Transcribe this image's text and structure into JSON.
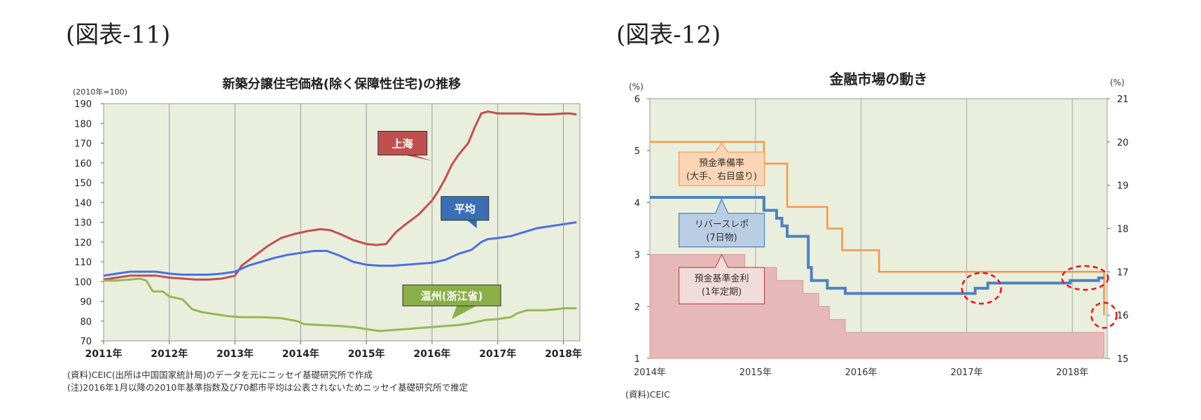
{
  "figures": {
    "left_label": "(図表-11)",
    "right_label": "(図表-12)"
  },
  "chart_data": [
    {
      "type": "line",
      "title": "新築分譲住宅価格(除く保障性住宅)の推移",
      "unit_label": "(2010年=100)",
      "xlabel": "",
      "ylabel": "",
      "x_ticks": [
        "2011年",
        "2012年",
        "2013年",
        "2014年",
        "2015年",
        "2016年",
        "2017年",
        "2018年"
      ],
      "xlim": [
        2011.0,
        2018.25
      ],
      "ylim": [
        70,
        190
      ],
      "y_ticks": [
        70,
        80,
        90,
        100,
        110,
        120,
        130,
        140,
        150,
        160,
        170,
        180,
        190
      ],
      "background": "#eaeedd",
      "grid": "vertical",
      "series": [
        {
          "name": "上海",
          "color": "#c0504d",
          "label_box_color": "#c0504d",
          "points": [
            [
              2011.0,
              101
            ],
            [
              2011.2,
              102
            ],
            [
              2011.4,
              103
            ],
            [
              2011.6,
              103
            ],
            [
              2011.8,
              103
            ],
            [
              2012.0,
              102
            ],
            [
              2012.2,
              101.5
            ],
            [
              2012.4,
              101
            ],
            [
              2012.6,
              101
            ],
            [
              2012.8,
              101.5
            ],
            [
              2013.0,
              103
            ],
            [
              2013.1,
              108
            ],
            [
              2013.3,
              113
            ],
            [
              2013.5,
              118
            ],
            [
              2013.7,
              122
            ],
            [
              2013.9,
              124
            ],
            [
              2014.1,
              125.5
            ],
            [
              2014.3,
              126.5
            ],
            [
              2014.45,
              126
            ],
            [
              2014.6,
              124
            ],
            [
              2014.8,
              121
            ],
            [
              2015.0,
              119
            ],
            [
              2015.15,
              118.5
            ],
            [
              2015.3,
              119
            ],
            [
              2015.45,
              125
            ],
            [
              2015.6,
              129
            ],
            [
              2015.8,
              134
            ],
            [
              2016.0,
              141
            ],
            [
              2016.1,
              146
            ],
            [
              2016.2,
              152
            ],
            [
              2016.3,
              159
            ],
            [
              2016.4,
              164
            ],
            [
              2016.55,
              170
            ],
            [
              2016.65,
              178
            ],
            [
              2016.75,
              185
            ],
            [
              2016.85,
              186
            ],
            [
              2017.0,
              185
            ],
            [
              2017.2,
              185
            ],
            [
              2017.4,
              185
            ],
            [
              2017.6,
              184.5
            ],
            [
              2017.8,
              184.5
            ],
            [
              2018.0,
              185
            ],
            [
              2018.1,
              185
            ],
            [
              2018.2,
              184.5
            ]
          ]
        },
        {
          "name": "平均",
          "color": "#4a6fe3",
          "label_box_color": "#3a6fb6",
          "points": [
            [
              2011.0,
              103
            ],
            [
              2011.2,
              104
            ],
            [
              2011.4,
              105
            ],
            [
              2011.6,
              105
            ],
            [
              2011.8,
              105
            ],
            [
              2012.0,
              104
            ],
            [
              2012.2,
              103.5
            ],
            [
              2012.4,
              103.5
            ],
            [
              2012.6,
              103.5
            ],
            [
              2012.8,
              104
            ],
            [
              2013.0,
              105
            ],
            [
              2013.2,
              108
            ],
            [
              2013.4,
              110
            ],
            [
              2013.6,
              112
            ],
            [
              2013.8,
              113.5
            ],
            [
              2014.0,
              114.5
            ],
            [
              2014.2,
              115.5
            ],
            [
              2014.4,
              115.5
            ],
            [
              2014.6,
              113
            ],
            [
              2014.8,
              110
            ],
            [
              2015.0,
              108.5
            ],
            [
              2015.2,
              108
            ],
            [
              2015.4,
              108
            ],
            [
              2015.6,
              108.5
            ],
            [
              2015.8,
              109
            ],
            [
              2016.0,
              109.5
            ],
            [
              2016.2,
              111
            ],
            [
              2016.4,
              114
            ],
            [
              2016.6,
              116
            ],
            [
              2016.75,
              120
            ],
            [
              2016.85,
              121.5
            ],
            [
              2017.0,
              122
            ],
            [
              2017.2,
              123
            ],
            [
              2017.4,
              125
            ],
            [
              2017.6,
              127
            ],
            [
              2017.8,
              128
            ],
            [
              2018.0,
              129
            ],
            [
              2018.2,
              130
            ]
          ]
        },
        {
          "name": "温州(浙江省)",
          "color": "#94b954",
          "label_box_color": "#8aaf48",
          "points": [
            [
              2011.0,
              100.5
            ],
            [
              2011.2,
              100.5
            ],
            [
              2011.4,
              101
            ],
            [
              2011.55,
              101.5
            ],
            [
              2011.65,
              100.5
            ],
            [
              2011.75,
              95
            ],
            [
              2011.9,
              95
            ],
            [
              2012.0,
              92.5
            ],
            [
              2012.2,
              91
            ],
            [
              2012.35,
              86
            ],
            [
              2012.5,
              84.5
            ],
            [
              2012.7,
              83.5
            ],
            [
              2012.9,
              82.5
            ],
            [
              2013.1,
              82
            ],
            [
              2013.4,
              82
            ],
            [
              2013.7,
              81.5
            ],
            [
              2013.95,
              80
            ],
            [
              2014.05,
              78.5
            ],
            [
              2014.3,
              78
            ],
            [
              2014.6,
              77.5
            ],
            [
              2014.8,
              77
            ],
            [
              2015.0,
              76
            ],
            [
              2015.2,
              75
            ],
            [
              2015.4,
              75.5
            ],
            [
              2015.6,
              76
            ],
            [
              2015.8,
              76.5
            ],
            [
              2016.0,
              77
            ],
            [
              2016.2,
              77.5
            ],
            [
              2016.4,
              78
            ],
            [
              2016.6,
              79
            ],
            [
              2016.8,
              80.5
            ],
            [
              2017.0,
              81
            ],
            [
              2017.2,
              82
            ],
            [
              2017.3,
              84
            ],
            [
              2017.45,
              85.5
            ],
            [
              2017.7,
              85.5
            ],
            [
              2017.9,
              86
            ],
            [
              2018.0,
              86.5
            ],
            [
              2018.2,
              86.5
            ]
          ]
        }
      ],
      "notes": [
        "(資料)CEIC(出所は中国国家統計局)のデータを元にニッセイ基礎研究所で作成",
        "(注)2016年1月以降の2010年基準指数及び70都市平均は公表されないためニッセイ基礎研究所で推定"
      ]
    },
    {
      "type": "line",
      "title": "金融市場の動き",
      "left_unit": "(%)",
      "right_unit": "(%)",
      "xlabel": "",
      "ylabel": "",
      "x_ticks": [
        "2014年",
        "2015年",
        "2016年",
        "2017年",
        "2018年"
      ],
      "xlim": [
        2014.0,
        2018.33
      ],
      "ylim_left": [
        1,
        6
      ],
      "y_ticks_left": [
        1,
        2,
        3,
        4,
        5,
        6
      ],
      "ylim_right": [
        15,
        21
      ],
      "y_ticks_right": [
        15,
        16,
        17,
        18,
        19,
        20,
        21
      ],
      "background": "#eaeedd",
      "grid": "vertical",
      "series": [
        {
          "name": "預金準備率(大手、右目盛り)",
          "label_lines": [
            "預金準備率",
            "(大手、右目盛り)"
          ],
          "axis": "right",
          "color": "#f79646",
          "box_fill": "#fbd5b5",
          "box_stroke": "#f79646",
          "points": [
            [
              2014.0,
              20.0
            ],
            [
              2015.08,
              20.0
            ],
            [
              2015.08,
              19.5
            ],
            [
              2015.3,
              19.5
            ],
            [
              2015.3,
              18.5
            ],
            [
              2015.68,
              18.5
            ],
            [
              2015.68,
              18.0
            ],
            [
              2015.82,
              18.0
            ],
            [
              2015.82,
              17.5
            ],
            [
              2016.17,
              17.5
            ],
            [
              2016.17,
              17.0
            ],
            [
              2018.3,
              17.0
            ],
            [
              2018.3,
              16.0
            ]
          ]
        },
        {
          "name": "リバースレポ(7日物)",
          "label_lines": [
            "リバースレポ",
            "(7日物)"
          ],
          "axis": "left",
          "color": "#4f81bd",
          "box_fill": "#b9cde5",
          "box_stroke": "#4f81bd",
          "points": [
            [
              2014.0,
              4.1
            ],
            [
              2015.08,
              4.1
            ],
            [
              2015.08,
              3.85
            ],
            [
              2015.2,
              3.85
            ],
            [
              2015.2,
              3.7
            ],
            [
              2015.25,
              3.7
            ],
            [
              2015.25,
              3.55
            ],
            [
              2015.3,
              3.55
            ],
            [
              2015.3,
              3.35
            ],
            [
              2015.5,
              3.35
            ],
            [
              2015.5,
              2.75
            ],
            [
              2015.53,
              2.75
            ],
            [
              2015.53,
              2.5
            ],
            [
              2015.68,
              2.5
            ],
            [
              2015.68,
              2.35
            ],
            [
              2015.85,
              2.35
            ],
            [
              2015.85,
              2.25
            ],
            [
              2017.08,
              2.25
            ],
            [
              2017.08,
              2.35
            ],
            [
              2017.2,
              2.35
            ],
            [
              2017.2,
              2.45
            ],
            [
              2017.98,
              2.45
            ],
            [
              2017.98,
              2.5
            ],
            [
              2018.25,
              2.5
            ],
            [
              2018.25,
              2.55
            ],
            [
              2018.3,
              2.55
            ]
          ]
        },
        {
          "name": "預金基準金利(1年定期)",
          "label_lines": [
            "預金基準金利",
            "(1年定期)"
          ],
          "axis": "left",
          "color": "#e6b8b7",
          "box_fill": "#f2dcdb",
          "box_stroke": "#c0504d",
          "points": [
            [
              2014.0,
              3.0
            ],
            [
              2014.9,
              3.0
            ],
            [
              2014.9,
              2.75
            ],
            [
              2015.2,
              2.75
            ],
            [
              2015.2,
              2.5
            ],
            [
              2015.45,
              2.5
            ],
            [
              2015.45,
              2.25
            ],
            [
              2015.6,
              2.25
            ],
            [
              2015.6,
              2.0
            ],
            [
              2015.7,
              2.0
            ],
            [
              2015.7,
              1.75
            ],
            [
              2015.85,
              1.75
            ],
            [
              2015.85,
              1.5
            ],
            [
              2018.3,
              1.5
            ]
          ]
        }
      ],
      "highlight_circles": [
        "2017年 リバースレポ上昇",
        "2018年 リバースレポ上昇",
        "2018年 預金準備率引き下げ"
      ],
      "source": "(資料)CEIC"
    }
  ]
}
